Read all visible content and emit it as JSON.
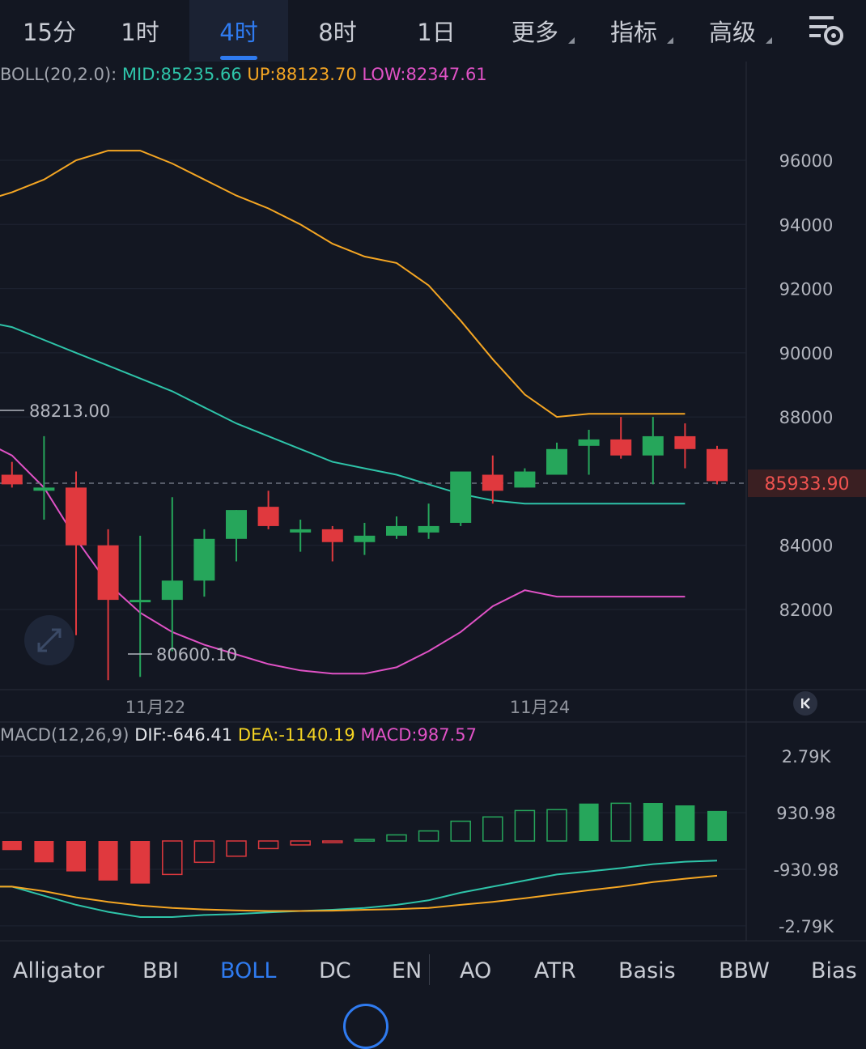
{
  "timeframes": [
    {
      "label": "15分",
      "active": false,
      "more": false
    },
    {
      "label": "1时",
      "active": false,
      "more": false
    },
    {
      "label": "4时",
      "active": true,
      "more": false
    },
    {
      "label": "8时",
      "active": false,
      "more": false
    },
    {
      "label": "1日",
      "active": false,
      "more": false
    },
    {
      "label": "更多",
      "active": false,
      "more": true
    },
    {
      "label": "指标",
      "active": false,
      "more": true
    },
    {
      "label": "高级",
      "active": false,
      "more": true
    }
  ],
  "settings_icon": "chart-settings-icon",
  "boll": {
    "name": "BOLL(20,2.0):",
    "mid": "MID:85235.66",
    "up": "UP:88123.70",
    "low": "LOW:82347.61"
  },
  "macd": {
    "name": "MACD(12,26,9)",
    "dif": "DIF:-646.41",
    "dea": "DEA:-1140.19",
    "macd": "MACD:987.57"
  },
  "colors": {
    "up": "#26a65b",
    "down": "#e0393e",
    "mid": "#2ec4a9",
    "upper": "#f5a623",
    "lower": "#e052c6",
    "dif": "#2ec4a9",
    "dea": "#f5a623"
  },
  "chart_data": [
    {
      "type": "candlestick",
      "title": "BOLL(20,2.0)",
      "x_labels": [
        "11月22",
        "11月24"
      ],
      "y_ticks": [
        96000,
        94000,
        92000,
        90000,
        88000,
        84000,
        82000
      ],
      "ylim": [
        79000,
        99000
      ],
      "current_price": 85933.9,
      "current_price_label": "85933.90",
      "max_label": "88213.00",
      "min_label": "80600.10",
      "candles": [
        {
          "o": 86200,
          "h": 86600,
          "l": 85800,
          "c": 85900
        },
        {
          "o": 85700,
          "h": 87400,
          "l": 84800,
          "c": 85800
        },
        {
          "o": 85800,
          "h": 86300,
          "l": 81200,
          "c": 84000
        },
        {
          "o": 84000,
          "h": 84500,
          "l": 79800,
          "c": 82300
        },
        {
          "o": 82300,
          "h": 84300,
          "l": 79900,
          "c": 82300
        },
        {
          "o": 82300,
          "h": 85500,
          "l": 80700,
          "c": 82900
        },
        {
          "o": 82900,
          "h": 84500,
          "l": 82400,
          "c": 84200
        },
        {
          "o": 84200,
          "h": 85100,
          "l": 83500,
          "c": 85100
        },
        {
          "o": 85200,
          "h": 85700,
          "l": 84500,
          "c": 84600
        },
        {
          "o": 84400,
          "h": 84800,
          "l": 83800,
          "c": 84500
        },
        {
          "o": 84500,
          "h": 84600,
          "l": 83500,
          "c": 84100
        },
        {
          "o": 84100,
          "h": 84700,
          "l": 83700,
          "c": 84300
        },
        {
          "o": 84300,
          "h": 84900,
          "l": 84200,
          "c": 84600
        },
        {
          "o": 84400,
          "h": 85300,
          "l": 84200,
          "c": 84600
        },
        {
          "o": 84700,
          "h": 86100,
          "l": 84600,
          "c": 86300
        },
        {
          "o": 86200,
          "h": 86800,
          "l": 85300,
          "c": 85700
        },
        {
          "o": 85800,
          "h": 86400,
          "l": 85800,
          "c": 86300
        },
        {
          "o": 86200,
          "h": 87200,
          "l": 86200,
          "c": 87000
        },
        {
          "o": 87100,
          "h": 87600,
          "l": 86200,
          "c": 87300
        },
        {
          "o": 87300,
          "h": 88000,
          "l": 86700,
          "c": 86800
        },
        {
          "o": 86800,
          "h": 88000,
          "l": 85900,
          "c": 87400
        },
        {
          "o": 87400,
          "h": 87800,
          "l": 86400,
          "c": 87000
        },
        {
          "o": 87000,
          "h": 87100,
          "l": 85900,
          "c": 86000
        }
      ],
      "bands": {
        "x_index": [
          -1,
          0,
          1,
          2,
          3,
          4,
          5,
          6,
          7,
          8,
          9,
          10,
          11,
          12,
          13,
          14,
          15,
          16,
          17,
          18,
          19,
          20,
          21,
          22
        ],
        "upper": [
          94700,
          95000,
          95400,
          96000,
          96300,
          96300,
          95900,
          95400,
          94900,
          94500,
          94000,
          93400,
          93000,
          92800,
          92100,
          91000,
          89800,
          88700,
          88000,
          88100,
          88100,
          88100,
          88100,
          null
        ],
        "mid": [
          91000,
          90800,
          90400,
          90000,
          89600,
          89200,
          88800,
          88300,
          87800,
          87400,
          87000,
          86600,
          86400,
          86200,
          85900,
          85600,
          85400,
          85300,
          85300,
          85300,
          85300,
          85300,
          85300,
          null
        ],
        "lower": [
          87300,
          86800,
          85800,
          84200,
          82800,
          81900,
          81300,
          80900,
          80600,
          80300,
          80100,
          80000,
          80000,
          80200,
          80700,
          81300,
          82100,
          82600,
          82400,
          82400,
          82400,
          82400,
          82400,
          null
        ]
      }
    },
    {
      "type": "macd",
      "title": "MACD(12,26,9)",
      "y_ticks": [
        2790,
        930.98,
        -930.98,
        -2790
      ],
      "y_tick_labels": [
        "2.79K",
        "930.98",
        "-930.98",
        "-2.79K"
      ],
      "ylim": [
        -3000,
        3000
      ],
      "histogram": [
        -300,
        -700,
        -1000,
        -1300,
        -1400,
        -1100,
        -700,
        -500,
        -250,
        -130,
        -20,
        50,
        200,
        330,
        650,
        790,
        1000,
        1030,
        1230,
        1240,
        1250,
        1170,
        987.57
      ],
      "dif": [
        -1500,
        -1800,
        -2100,
        -2330,
        -2500,
        -2500,
        -2430,
        -2400,
        -2350,
        -2300,
        -2260,
        -2200,
        -2100,
        -1950,
        -1700,
        -1500,
        -1300,
        -1100,
        -1000,
        -890,
        -760,
        -680,
        -646.41
      ],
      "dea": [
        -1500,
        -1650,
        -1850,
        -2000,
        -2120,
        -2200,
        -2250,
        -2280,
        -2300,
        -2300,
        -2290,
        -2260,
        -2240,
        -2200,
        -2100,
        -2000,
        -1880,
        -1750,
        -1620,
        -1500,
        -1350,
        -1240,
        -1140.19
      ]
    }
  ],
  "indicators": [
    {
      "label": "Alligator",
      "active": false
    },
    {
      "label": "BBI",
      "active": false
    },
    {
      "label": "BOLL",
      "active": true
    },
    {
      "label": "DC",
      "active": false
    },
    {
      "label": "EN",
      "active": false
    },
    {
      "label": "AO",
      "active": false
    },
    {
      "label": "ATR",
      "active": false
    },
    {
      "label": "Basis",
      "active": false
    },
    {
      "label": "BBW",
      "active": false
    },
    {
      "label": "Bias",
      "active": false
    }
  ]
}
